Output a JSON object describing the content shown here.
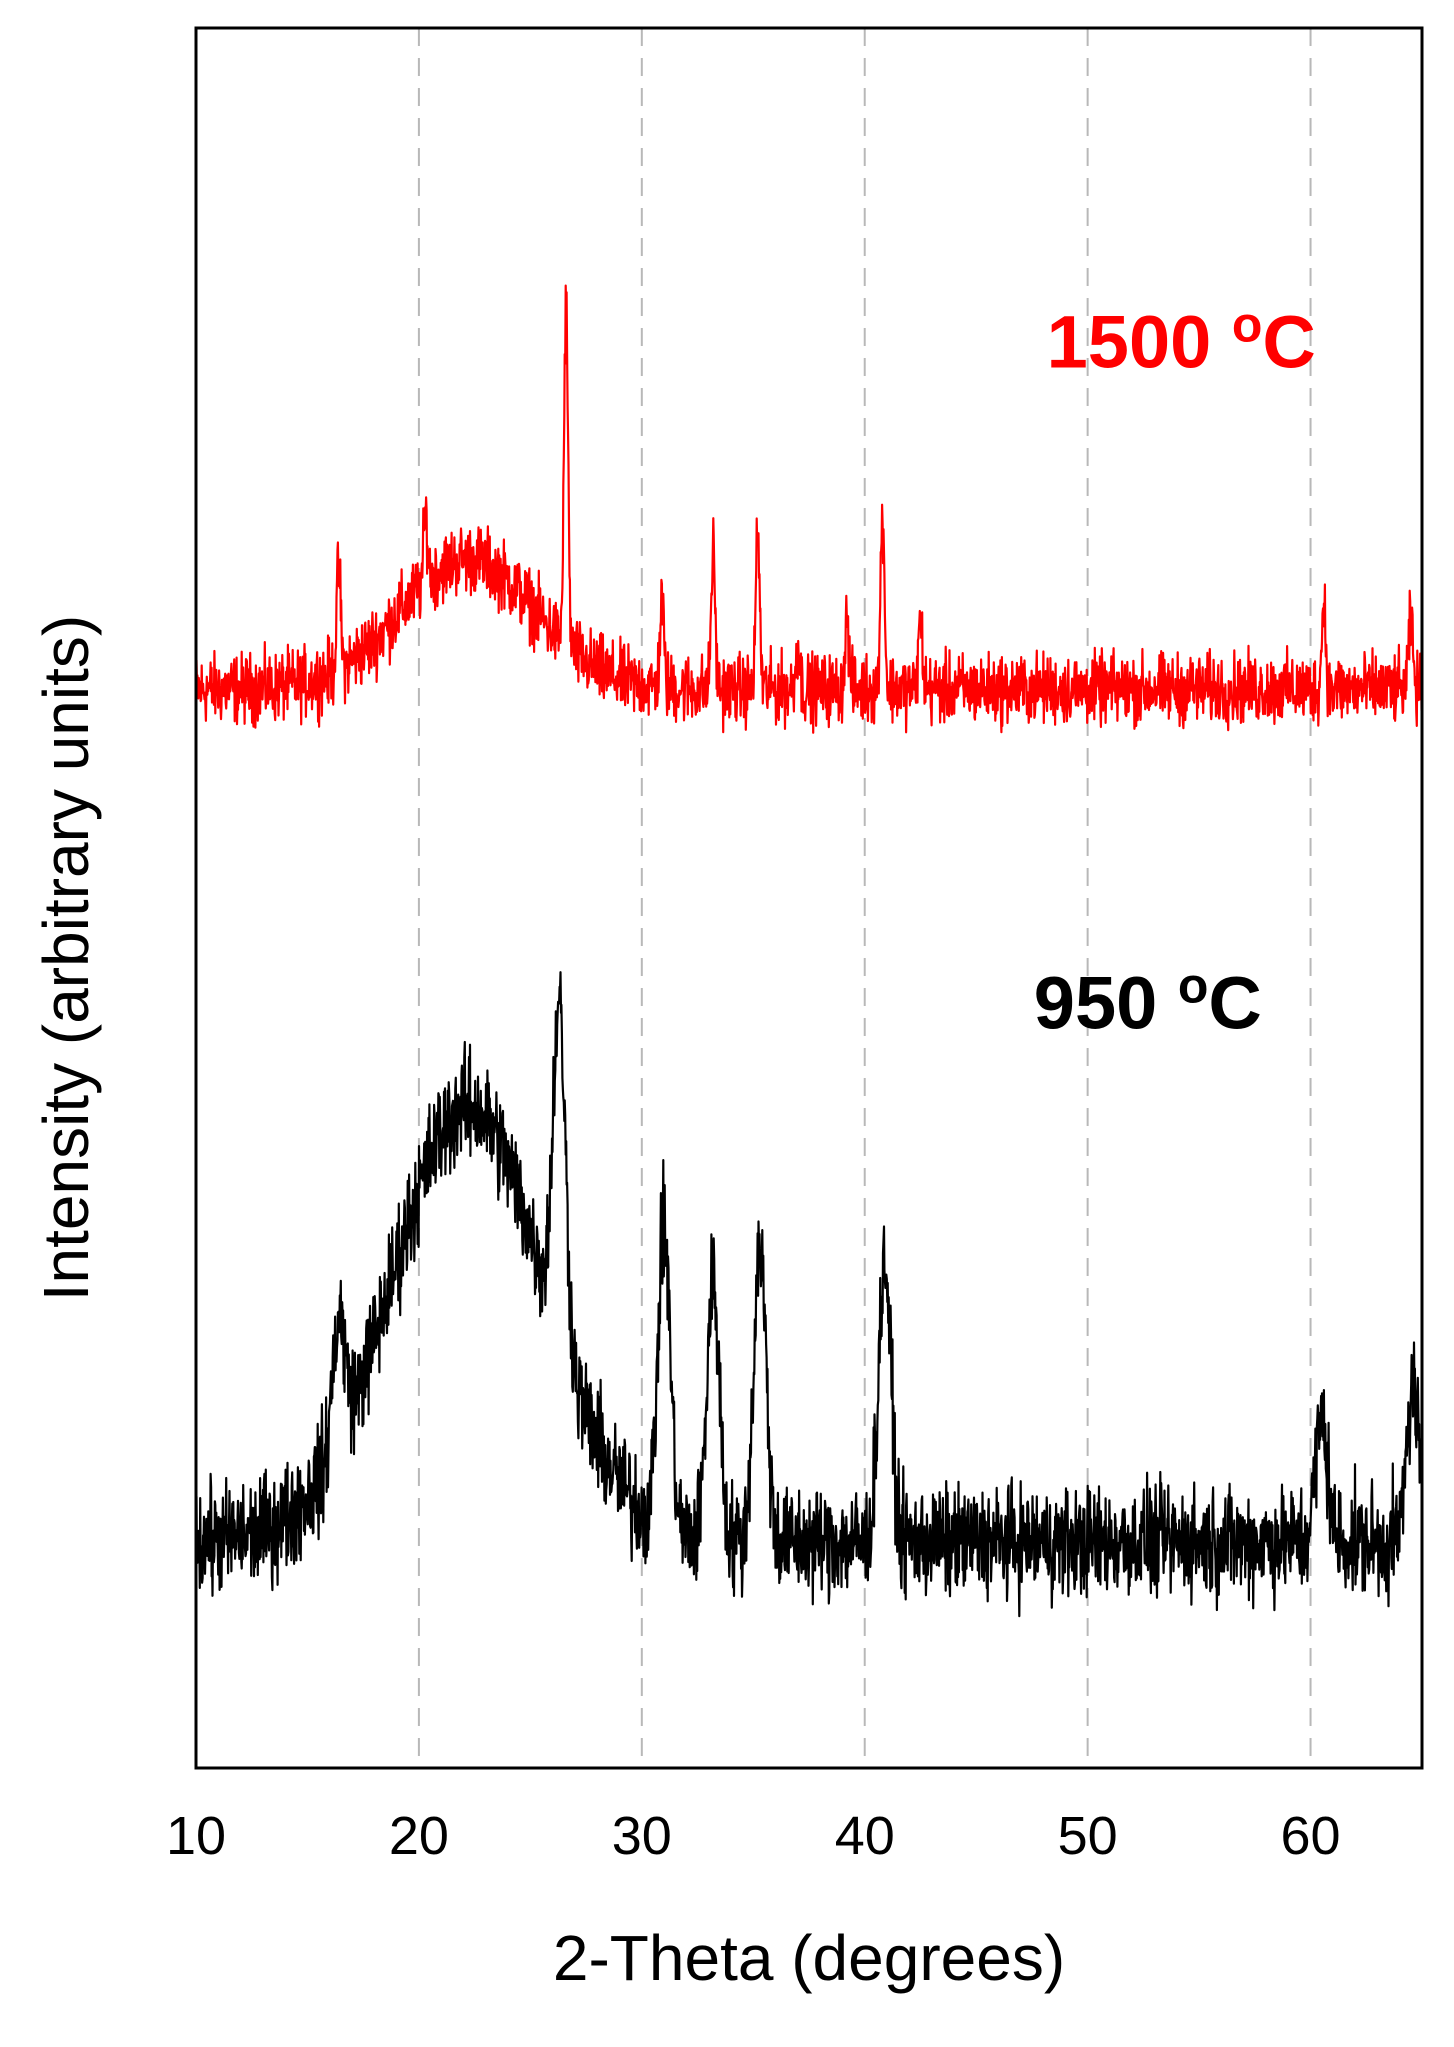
{
  "chart_data": {
    "type": "line",
    "xlabel": "2-Theta (degrees)",
    "ylabel": "Intensity (arbitrary units)",
    "xlim": [
      10,
      65
    ],
    "ylim": [
      0,
      100
    ],
    "x_ticks": [
      10,
      20,
      30,
      40,
      50,
      60
    ],
    "y_ticks_visible": false,
    "grid": {
      "vertical_dashed_at": [
        20,
        30,
        40,
        50,
        60
      ],
      "horizontal": false
    },
    "legend": "none",
    "series": [
      {
        "label": "1500 °C",
        "label_text": "1500 ",
        "label_sup": "o",
        "label_unit": "C",
        "color": "#ff0000",
        "baseline": 62,
        "noise": 1.4,
        "broad_hump": {
          "center": 22.2,
          "height": 7.5,
          "width": 3.0
        },
        "peaks": [
          {
            "x": 16.4,
            "y": 69
          },
          {
            "x": 20.3,
            "y": 72
          },
          {
            "x": 26.6,
            "y": 84
          },
          {
            "x": 30.9,
            "y": 67
          },
          {
            "x": 33.2,
            "y": 70
          },
          {
            "x": 35.2,
            "y": 71
          },
          {
            "x": 37.0,
            "y": 64.5
          },
          {
            "x": 39.2,
            "y": 66
          },
          {
            "x": 40.8,
            "y": 72
          },
          {
            "x": 42.5,
            "y": 66
          },
          {
            "x": 60.6,
            "y": 67
          },
          {
            "x": 64.5,
            "y": 66
          }
        ]
      },
      {
        "label": "950 °C",
        "label_text": "950 ",
        "label_sup": "o",
        "label_unit": "C",
        "color": "#000000",
        "baseline": 13,
        "noise": 2.2,
        "broad_hump": {
          "center": 22.2,
          "height": 25,
          "width": 3.4
        },
        "peaks": [
          {
            "x": 16.4,
            "y": 26
          },
          {
            "x": 26.3,
            "y": 44
          },
          {
            "x": 31.0,
            "y": 31
          },
          {
            "x": 33.2,
            "y": 28
          },
          {
            "x": 35.3,
            "y": 30
          },
          {
            "x": 40.9,
            "y": 29
          },
          {
            "x": 60.5,
            "y": 20
          },
          {
            "x": 64.6,
            "y": 22
          }
        ]
      }
    ]
  }
}
